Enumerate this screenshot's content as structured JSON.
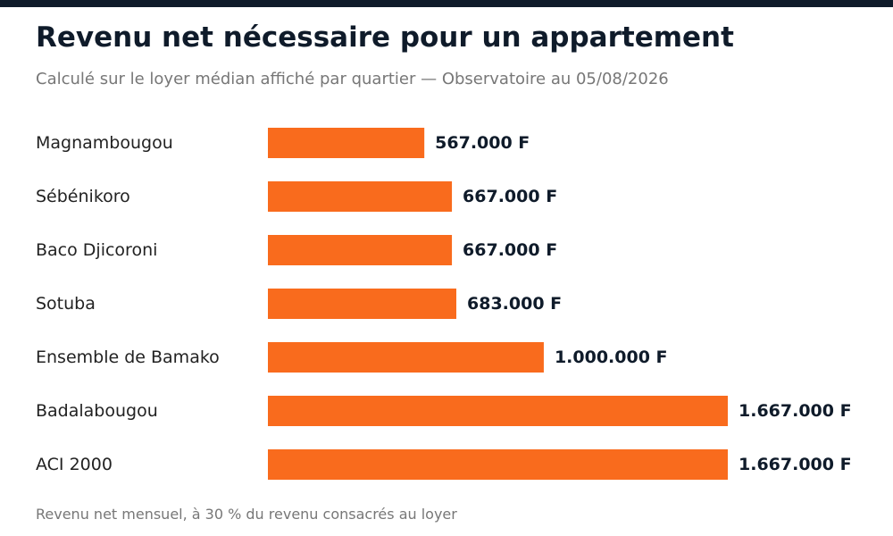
{
  "header": {
    "title": "Revenu net nécessaire pour un appartement",
    "subtitle": "Calculé sur le loyer médian affiché par quartier — Observatoire au 05/08/2026"
  },
  "footer": {
    "note": "Revenu net mensuel, à 30 % du revenu consacrés au loyer"
  },
  "colors": {
    "top_bar": "#0f1b2a",
    "bar": "#f96b1d",
    "label": "#222222",
    "value_label": "#0f1b2a"
  },
  "chart_data": {
    "type": "bar",
    "orientation": "horizontal",
    "title": "Revenu net nécessaire pour un appartement",
    "subtitle": "Calculé sur le loyer médian affiché par quartier — Observatoire au 05/08/2026",
    "xlabel": "",
    "ylabel": "",
    "grid": false,
    "legend": "none",
    "categories": [
      "Magnambougou",
      "Sébénikoro",
      "Baco Djicoroni",
      "Sotuba",
      "Ensemble de Bamako",
      "Badalabougou",
      "ACI 2000"
    ],
    "values": [
      567000,
      667000,
      667000,
      683000,
      1000000,
      1667000,
      1667000
    ],
    "value_labels": [
      "567.000 F",
      "667.000 F",
      "667.000 F",
      "683.000 F",
      "1.000.000 F",
      "1.667.000 F",
      "1.667.000 F"
    ]
  }
}
